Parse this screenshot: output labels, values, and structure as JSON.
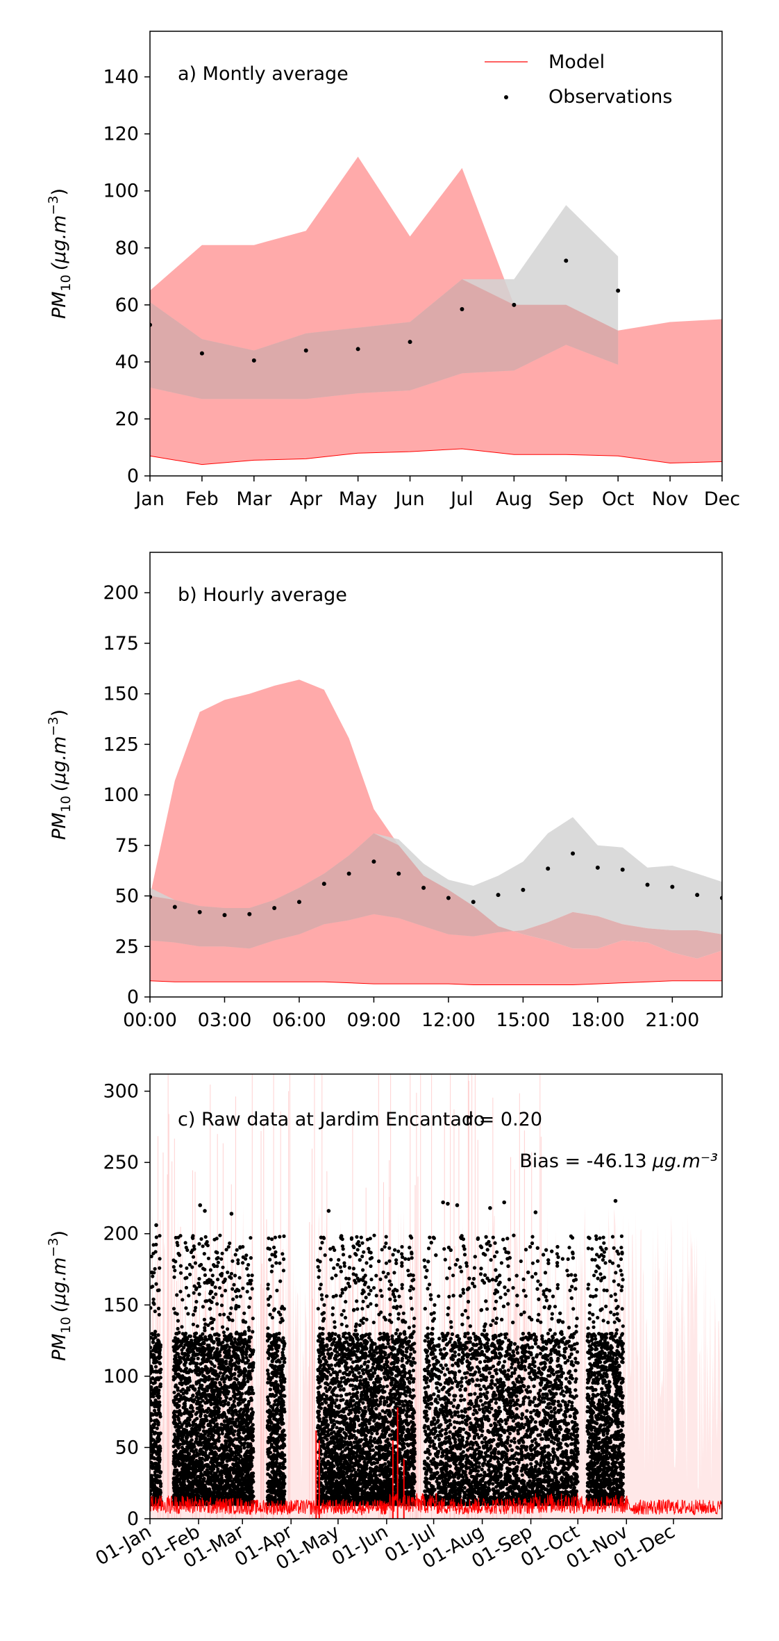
{
  "chart_data": [
    {
      "type": "area",
      "panel_label": "a) Montly average",
      "ylabel": "PM10 (µg.m⁻³)",
      "ylabel_parts": {
        "base": "PM",
        "sub": "10",
        "unit": "(µg.m",
        "sup": "−3",
        "close": ")"
      },
      "ylim": [
        0,
        156
      ],
      "yticks": [
        0,
        20,
        40,
        60,
        80,
        100,
        120,
        140
      ],
      "categories": [
        "Jan",
        "Feb",
        "Mar",
        "Apr",
        "May",
        "Jun",
        "Jul",
        "Aug",
        "Sep",
        "Oct",
        "Nov",
        "Dec"
      ],
      "legend": {
        "position": "top-right",
        "entries": [
          "Model",
          "Observations"
        ]
      },
      "colors": {
        "model": "#ff0000",
        "model_band": "#ffaaaa",
        "obs_band": "#d3d3d3",
        "obs": "#000000"
      },
      "model_low": [
        7,
        4,
        5.5,
        6,
        8,
        8.5,
        9.5,
        7.5,
        7.5,
        7,
        4.5,
        5
      ],
      "model_high": [
        65,
        81,
        81,
        86,
        112,
        84,
        108,
        60,
        60,
        51,
        54,
        55
      ],
      "obs_low": [
        31,
        27,
        27,
        27,
        29,
        30,
        36,
        37,
        46,
        39
      ],
      "obs_high": [
        61,
        48,
        44,
        50,
        52,
        54,
        69,
        69,
        95,
        77
      ],
      "obs_values": [
        53,
        43,
        40.5,
        44,
        44.5,
        47,
        58.5,
        60,
        75.5,
        65
      ]
    },
    {
      "type": "area",
      "panel_label": "b) Hourly average",
      "ylabel": "PM10 (µg.m⁻³)",
      "ylabel_parts": {
        "base": "PM",
        "sub": "10",
        "unit": "(µg.m",
        "sup": "−3",
        "close": ")"
      },
      "ylim": [
        0,
        220
      ],
      "yticks": [
        0,
        25,
        50,
        75,
        100,
        125,
        150,
        175,
        200
      ],
      "x": [
        0,
        1,
        2,
        3,
        4,
        5,
        6,
        7,
        8,
        9,
        10,
        11,
        12,
        13,
        14,
        15,
        16,
        17,
        18,
        19,
        20,
        21,
        22,
        23
      ],
      "xticks": [
        0,
        3,
        6,
        9,
        12,
        15,
        18,
        21
      ],
      "xtick_labels": [
        "00:00",
        "03:00",
        "06:00",
        "09:00",
        "12:00",
        "15:00",
        "18:00",
        "21:00"
      ],
      "xlim": [
        0,
        23
      ],
      "model_low": [
        8,
        7.5,
        7.5,
        7.5,
        7.5,
        7.5,
        7.5,
        7.5,
        7,
        6.5,
        6.5,
        6.5,
        6.5,
        6,
        6,
        6,
        6,
        6,
        6.5,
        7,
        7.5,
        8,
        8,
        8
      ],
      "model_high": [
        50,
        107,
        141,
        147,
        150,
        154,
        157,
        152,
        128,
        93,
        75,
        60,
        53,
        45,
        35,
        31,
        28,
        24,
        24,
        28,
        27,
        22,
        19,
        23
      ],
      "obs_low": [
        28,
        27,
        25,
        25,
        24,
        28,
        31,
        36,
        38,
        41,
        39,
        35,
        31,
        30,
        32,
        33,
        37,
        42,
        40,
        36,
        34,
        33,
        33,
        31
      ],
      "obs_high": [
        54,
        48,
        45,
        44,
        44,
        48,
        54,
        61,
        70,
        81,
        78,
        66,
        58,
        55,
        60,
        67,
        81,
        89,
        75,
        74,
        64,
        65,
        61,
        57
      ],
      "obs_values": [
        49.5,
        44.5,
        42,
        40.5,
        41,
        44,
        47,
        56,
        61,
        67,
        61,
        54,
        49,
        47,
        50.5,
        53,
        63.5,
        71,
        64,
        63,
        55.5,
        54.5,
        50.5,
        49
      ]
    },
    {
      "type": "scatter",
      "panel_label": "c) Raw data at Jardim Encantado",
      "stat_r": "r = 0.20",
      "stat_bias": "Bias = -46.13",
      "stat_bias_unit": "µg.m⁻³",
      "ylabel": "PM10 (µg.m⁻³)",
      "ylabel_parts": {
        "base": "PM",
        "sub": "10",
        "unit": "(µg.m",
        "sup": "−3",
        "close": ")"
      },
      "ylim": [
        0,
        312
      ],
      "yticks": [
        0,
        50,
        100,
        150,
        200,
        250,
        300
      ],
      "xticks": [
        "01-Jan",
        "01-Feb",
        "01-Mar",
        "01-Apr",
        "01-May",
        "01-Jun",
        "01-Jul",
        "01-Aug",
        "01-Sep",
        "01-Oct",
        "01-Nov",
        "01-Dec"
      ],
      "xtick_days": [
        0,
        31,
        59,
        90,
        120,
        151,
        181,
        212,
        243,
        273,
        304,
        334
      ],
      "xlim_days": [
        0,
        365
      ],
      "model_typical": [
        11,
        10,
        9,
        9,
        9,
        12,
        10,
        10,
        12,
        11,
        9,
        9,
        10
      ],
      "obs_segments": [
        {
          "start": "01-Jan",
          "end": "08-Jan"
        },
        {
          "start": "16-Jan",
          "end": "08-Mar"
        },
        {
          "start": "17-Mar",
          "end": "28-Mar"
        },
        {
          "start": "18-Apr",
          "end": "19-Jun"
        },
        {
          "start": "25-Jun",
          "end": "01-Oct"
        },
        {
          "start": "07-Oct",
          "end": "30-Oct"
        }
      ],
      "obs_peaks": [
        {
          "date": "05-Jan",
          "value": 206
        },
        {
          "date": "02-Feb",
          "value": 220
        },
        {
          "date": "05-Feb",
          "value": 216
        },
        {
          "date": "22-Feb",
          "value": 214
        },
        {
          "date": "25-Apr",
          "value": 216
        },
        {
          "date": "07-Jul",
          "value": 222
        },
        {
          "date": "10-Jul",
          "value": 221
        },
        {
          "date": "16-Jul",
          "value": 220
        },
        {
          "date": "06-Aug",
          "value": 218
        },
        {
          "date": "15-Aug",
          "value": 222
        },
        {
          "date": "04-Sep",
          "value": 215
        },
        {
          "date": "25-Oct",
          "value": 223
        }
      ]
    }
  ]
}
